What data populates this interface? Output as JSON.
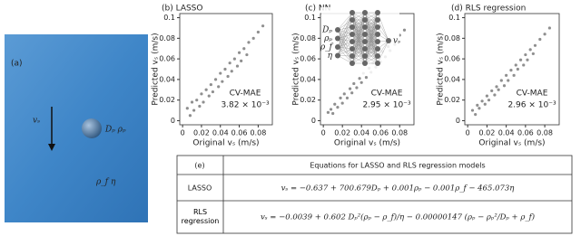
{
  "panel_a": {
    "label": "(a)",
    "velocity": "vₛ",
    "particle": "Dₚ ρₚ",
    "fluid": "ρ_f η"
  },
  "chart_data": [
    {
      "type": "scatter",
      "title": "(b) LASSO",
      "xlabel": "Original vₛ (m/s)",
      "ylabel": "Predicted vₛ (m/s)",
      "annotations": [
        "CV-MAE",
        "3.82 × 10⁻³"
      ],
      "color": "#444",
      "xlim": [
        -0.003,
        0.095
      ],
      "ylim": [
        -0.004,
        0.104
      ],
      "xticks": [
        0,
        0.02,
        0.04,
        0.06,
        0.08
      ],
      "yticks": [
        0,
        0.02,
        0.04,
        0.06,
        0.08,
        0.1
      ],
      "x": [
        0.005,
        0.008,
        0.01,
        0.012,
        0.015,
        0.018,
        0.02,
        0.022,
        0.025,
        0.028,
        0.03,
        0.032,
        0.035,
        0.038,
        0.04,
        0.042,
        0.045,
        0.048,
        0.05,
        0.052,
        0.055,
        0.058,
        0.06,
        0.062,
        0.065,
        0.068,
        0.07,
        0.075,
        0.08,
        0.085
      ],
      "y": [
        0.012,
        0.005,
        0.018,
        0.01,
        0.02,
        0.014,
        0.026,
        0.018,
        0.03,
        0.024,
        0.035,
        0.028,
        0.04,
        0.033,
        0.046,
        0.038,
        0.05,
        0.043,
        0.056,
        0.048,
        0.06,
        0.053,
        0.066,
        0.058,
        0.07,
        0.064,
        0.076,
        0.08,
        0.086,
        0.092
      ]
    },
    {
      "type": "scatter",
      "title": "(c) NN",
      "xlabel": "Original vₛ (m/s)",
      "ylabel": "Predicted vₛ (m/s)",
      "annotations": [
        "CV-MAE",
        "2.95 × 10⁻³"
      ],
      "color": "#444",
      "xlim": [
        -0.003,
        0.095
      ],
      "ylim": [
        -0.004,
        0.104
      ],
      "xticks": [
        0,
        0.02,
        0.04,
        0.06,
        0.08
      ],
      "yticks": [
        0,
        0.02,
        0.04,
        0.06,
        0.08,
        0.1
      ],
      "x": [
        0.005,
        0.008,
        0.01,
        0.012,
        0.015,
        0.018,
        0.02,
        0.022,
        0.025,
        0.028,
        0.03,
        0.032,
        0.035,
        0.038,
        0.04,
        0.042,
        0.045,
        0.048,
        0.05,
        0.052,
        0.055,
        0.058,
        0.06,
        0.062,
        0.065,
        0.068,
        0.07,
        0.075,
        0.08,
        0.085
      ],
      "y": [
        0.008,
        0.011,
        0.007,
        0.016,
        0.013,
        0.022,
        0.017,
        0.026,
        0.022,
        0.031,
        0.027,
        0.036,
        0.032,
        0.041,
        0.037,
        0.046,
        0.042,
        0.051,
        0.047,
        0.056,
        0.052,
        0.062,
        0.057,
        0.067,
        0.062,
        0.072,
        0.068,
        0.074,
        0.083,
        0.088
      ]
    },
    {
      "type": "scatter",
      "title": "(d) RLS regression",
      "xlabel": "Original vₛ (m/s)",
      "ylabel": "Predicted vₛ (m/s)",
      "annotations": [
        "CV-MAE",
        "2.96 × 10⁻³"
      ],
      "color": "#444",
      "xlim": [
        -0.003,
        0.095
      ],
      "ylim": [
        -0.004,
        0.104
      ],
      "xticks": [
        0,
        0.02,
        0.04,
        0.06,
        0.08
      ],
      "yticks": [
        0,
        0.02,
        0.04,
        0.06,
        0.08,
        0.1
      ],
      "x": [
        0.005,
        0.008,
        0.01,
        0.012,
        0.015,
        0.018,
        0.02,
        0.022,
        0.025,
        0.028,
        0.03,
        0.032,
        0.035,
        0.038,
        0.04,
        0.042,
        0.045,
        0.048,
        0.05,
        0.052,
        0.055,
        0.058,
        0.06,
        0.062,
        0.065,
        0.068,
        0.07,
        0.075,
        0.08,
        0.085
      ],
      "y": [
        0.01,
        0.006,
        0.015,
        0.012,
        0.019,
        0.016,
        0.024,
        0.02,
        0.029,
        0.025,
        0.033,
        0.03,
        0.039,
        0.034,
        0.044,
        0.039,
        0.049,
        0.044,
        0.054,
        0.05,
        0.059,
        0.054,
        0.064,
        0.059,
        0.069,
        0.065,
        0.073,
        0.079,
        0.084,
        0.09
      ]
    }
  ],
  "nn_labels": {
    "inputs": [
      "Dₚ",
      "ρₚ",
      "ρ_f",
      "η"
    ],
    "output": "vₛ"
  },
  "table": {
    "header": [
      "(e)",
      "Equations for LASSO and RLS regression models"
    ],
    "rows": [
      [
        "LASSO",
        "vₛ = −0.637 + 700.679Dₚ + 0.001ρₚ − 0.001ρ_f − 465.073η"
      ],
      [
        "RLS regression",
        "vₛ = −0.0039 + 0.602 Dₚ²(ρₚ − ρ_f)/η − 0.00000147 (ρₚ − ρₚ²/Dₚ + ρ_f)"
      ]
    ]
  }
}
